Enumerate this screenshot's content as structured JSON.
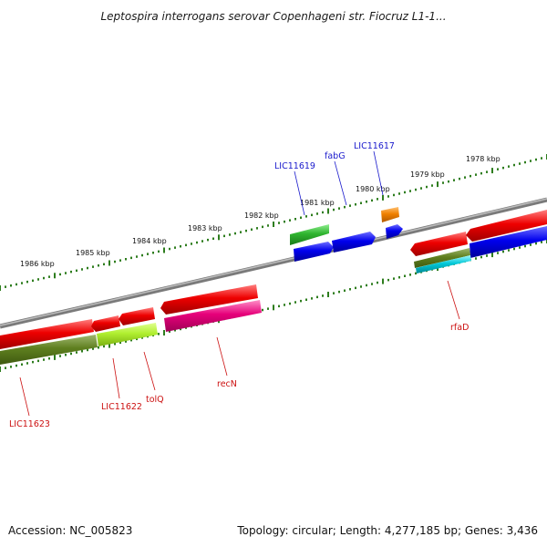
{
  "title": "Leptospira interrogans serovar Copenhageni str. Fiocruz L1-1...",
  "footer": {
    "accession": "Accession: NC_005823",
    "topology": "Topology: circular; Length: 4,277,185 bp; Genes: 3,436"
  },
  "colors": {
    "backbone": "#7a7a7a",
    "ticks": "#2e7d1e",
    "forward_label": "#1a1acc",
    "reverse_label": "#cc1111",
    "red": "#e60000",
    "blue": "#0000e6",
    "green": "#2fb52f",
    "orange": "#f08000",
    "olive": "#5f7f1f",
    "lime": "#a8e630",
    "magenta": "#e6007a",
    "cyan": "#00c8d8"
  },
  "kbp_labels": [
    "1986 kbp",
    "1985 kbp",
    "1984 kbp",
    "1983 kbp",
    "1982 kbp",
    "1981 kbp",
    "1980 kbp",
    "1979 kbp",
    "1978 kbp"
  ],
  "gene_labels": [
    {
      "text": "LIC11619",
      "strand": "forward"
    },
    {
      "text": "fabG",
      "strand": "forward"
    },
    {
      "text": "LIC11617",
      "strand": "forward"
    },
    {
      "text": "rfaD",
      "strand": "reverse"
    },
    {
      "text": "recN",
      "strand": "reverse"
    },
    {
      "text": "tolQ",
      "strand": "reverse"
    },
    {
      "text": "LIC11622",
      "strand": "reverse"
    },
    {
      "text": "LIC11623",
      "strand": "reverse"
    }
  ]
}
